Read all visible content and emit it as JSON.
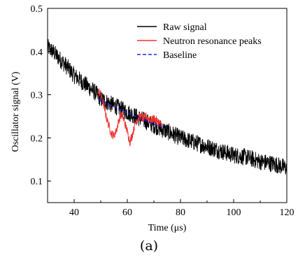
{
  "caption": "(a)",
  "chart_data": {
    "type": "line",
    "xlabel": "Time (μs)",
    "ylabel": "Oscillator signal (V)",
    "xlim": [
      30,
      120
    ],
    "ylim": [
      0.05,
      0.5
    ],
    "x_ticks": [
      40,
      60,
      80,
      100,
      120
    ],
    "y_ticks": [
      0.1,
      0.2,
      0.3,
      0.4,
      0.5
    ],
    "grid": false,
    "legend_position": "top-right",
    "series": [
      {
        "name": "Raw signal",
        "color": "#000000",
        "style": "solid",
        "noise_amplitude": 0.02,
        "x": [
          30,
          32,
          35,
          38,
          40,
          42,
          45,
          48,
          50,
          73,
          75,
          80,
          85,
          90,
          95,
          100,
          105,
          110,
          115,
          120
        ],
        "y": [
          0.41,
          0.4,
          0.38,
          0.36,
          0.345,
          0.335,
          0.32,
          0.305,
          0.29,
          0.22,
          0.215,
          0.2,
          0.19,
          0.18,
          0.17,
          0.16,
          0.155,
          0.145,
          0.14,
          0.13
        ]
      },
      {
        "name": "Neutron resonance peaks",
        "color": "#f03030",
        "style": "solid",
        "noise_amplitude": 0.01,
        "x": [
          49,
          50,
          51,
          52,
          53,
          54,
          55,
          56,
          57,
          58,
          59,
          60,
          61,
          62,
          63,
          64,
          65,
          66,
          67,
          68,
          69,
          70,
          71,
          72,
          73
        ],
        "y": [
          0.31,
          0.3,
          0.28,
          0.25,
          0.23,
          0.21,
          0.205,
          0.22,
          0.245,
          0.255,
          0.235,
          0.215,
          0.19,
          0.21,
          0.235,
          0.245,
          0.25,
          0.245,
          0.25,
          0.245,
          0.24,
          0.245,
          0.24,
          0.235,
          0.23
        ]
      },
      {
        "name": "Baseline",
        "color": "#2020ee",
        "style": "dashed",
        "x": [
          49,
          55,
          60,
          65,
          70,
          73
        ],
        "y": [
          0.29,
          0.272,
          0.258,
          0.245,
          0.232,
          0.225
        ]
      }
    ]
  }
}
